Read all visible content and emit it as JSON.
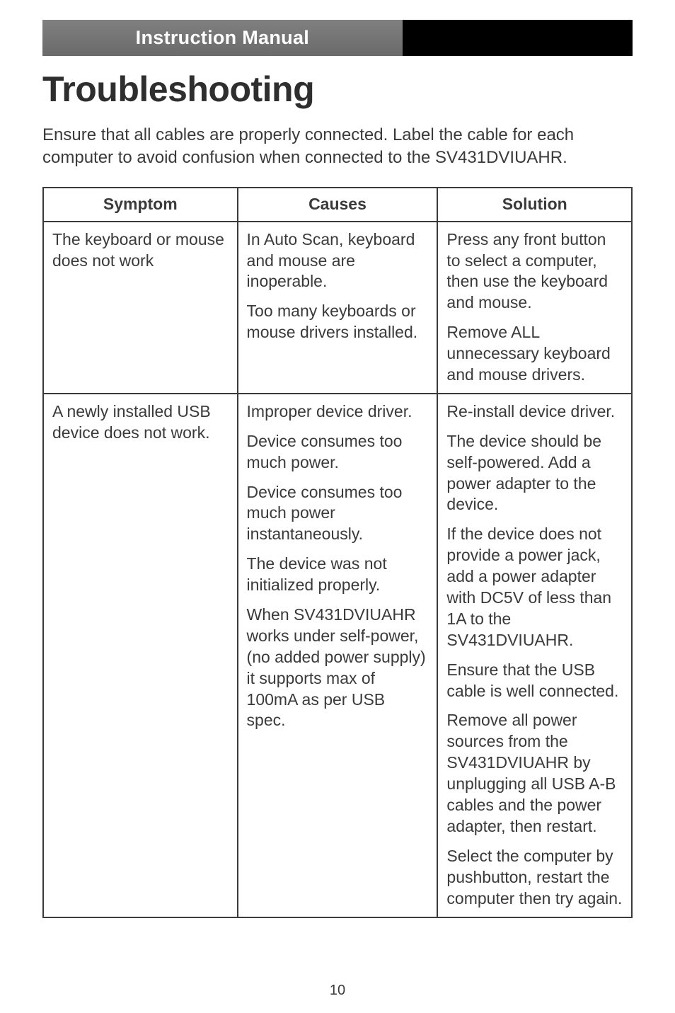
{
  "header": {
    "banner": "Instruction Manual"
  },
  "title": "Troubleshooting",
  "intro": "Ensure that all cables are properly connected.  Label the cable for each computer to avoid confusion when connected to the SV431DVIUAHR.",
  "table": {
    "headers": [
      "Symptom",
      "Causes",
      "Solution"
    ],
    "rows": [
      {
        "symptom": [
          "The keyboard or mouse does not work"
        ],
        "causes": [
          "In Auto Scan, keyboard and mouse are inoperable.",
          "Too many keyboards or mouse drivers installed."
        ],
        "solution": [
          "Press any front button to select a computer, then use the keyboard and mouse.",
          "Remove ALL unnecessary keyboard and mouse drivers."
        ]
      },
      {
        "symptom": [
          "A newly installed USB device does not work."
        ],
        "causes": [
          "Improper device driver.",
          "Device consumes too much power.",
          "Device consumes too much power instantaneously.",
          "The device was not initialized properly.",
          "When SV431DVIUAHR works under self-power, (no added power supply) it supports max of 100mA as per USB spec."
        ],
        "solution": [
          "Re-install device driver.",
          "The device should be self-powered. Add a power adapter to the device.",
          "If the device does not provide a power jack, add a power adapter with DC5V of less than 1A to the SV431DVIUAHR.",
          "Ensure that the USB cable is well connected.",
          "Remove all power sources from the SV431DVIUAHR by unplugging all USB A-B cables and the power adapter, then restart.",
          "Select the computer by pushbutton, restart the computer then try again."
        ]
      }
    ]
  },
  "page_number": "10"
}
